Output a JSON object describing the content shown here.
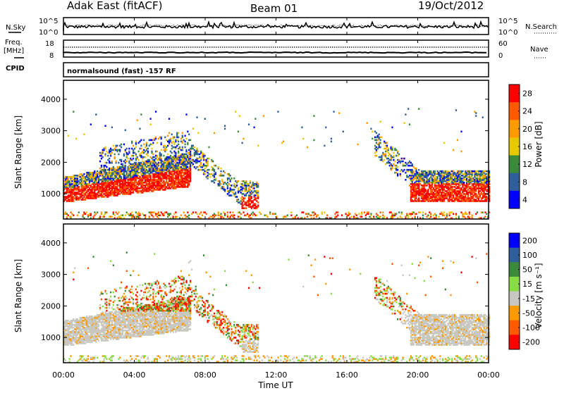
{
  "header": {
    "station": "Adak East (fitACF)",
    "beam": "Beam 01",
    "date": "19/Oct/2012"
  },
  "noise_panel": {
    "left_label": "N.Sky",
    "right_label": "N.Search",
    "left_ticks": [
      "10^5",
      "10^0"
    ],
    "right_ticks": [
      "10^5",
      "10^0"
    ]
  },
  "freq_panel": {
    "left_label_line1": "Freq.",
    "left_label_line2": "[MHz]",
    "left_ticks": [
      "18",
      "8"
    ],
    "right_ticks": [
      "60",
      "0"
    ],
    "right_label": "Nave",
    "cpid_label": "CPID"
  },
  "cpid_text": "normalsound (fast) -157 RF",
  "chart_data": [
    {
      "type": "heatmap",
      "panel": "power",
      "ylabel": "Slant Range [km]",
      "y_ticks": [
        1000,
        2000,
        3000,
        4000
      ],
      "ylim": [
        200,
        4600
      ],
      "xlim": [
        0,
        24
      ],
      "colorbar_label": "Power [dB]",
      "colorbar_ticks": [
        "28",
        "24",
        "20",
        "16",
        "12",
        "8",
        "4"
      ],
      "colorbar_colors": [
        "#ff0000",
        "#ff5a00",
        "#ff9a00",
        "#e8c800",
        "#3a8a3a",
        "#2f5f9a",
        "#0000ff"
      ]
    },
    {
      "type": "heatmap",
      "panel": "velocity",
      "ylabel": "Slant Range [km]",
      "y_ticks": [
        1000,
        2000,
        3000,
        4000
      ],
      "ylim": [
        200,
        4600
      ],
      "xlim": [
        0,
        24
      ],
      "colorbar_label": "Velocity [m s⁻¹]",
      "colorbar_ticks": [
        "200",
        "100",
        "50",
        "15",
        "-15",
        "-50",
        "-100",
        "-200"
      ],
      "colorbar_colors": [
        "#0000ff",
        "#2f5f9a",
        "#3a8a3a",
        "#88dd44",
        "#c8c8c0",
        "#ff9a00",
        "#ff5a00",
        "#ff0000"
      ]
    }
  ],
  "x_axis": {
    "tick_labels": [
      "00:00",
      "04:00",
      "08:00",
      "12:00",
      "16:00",
      "20:00",
      "00:00"
    ],
    "label": "Time UT"
  },
  "colors": {
    "power_high": "#ff0000",
    "velocity_ground": "#c8c8c0"
  }
}
